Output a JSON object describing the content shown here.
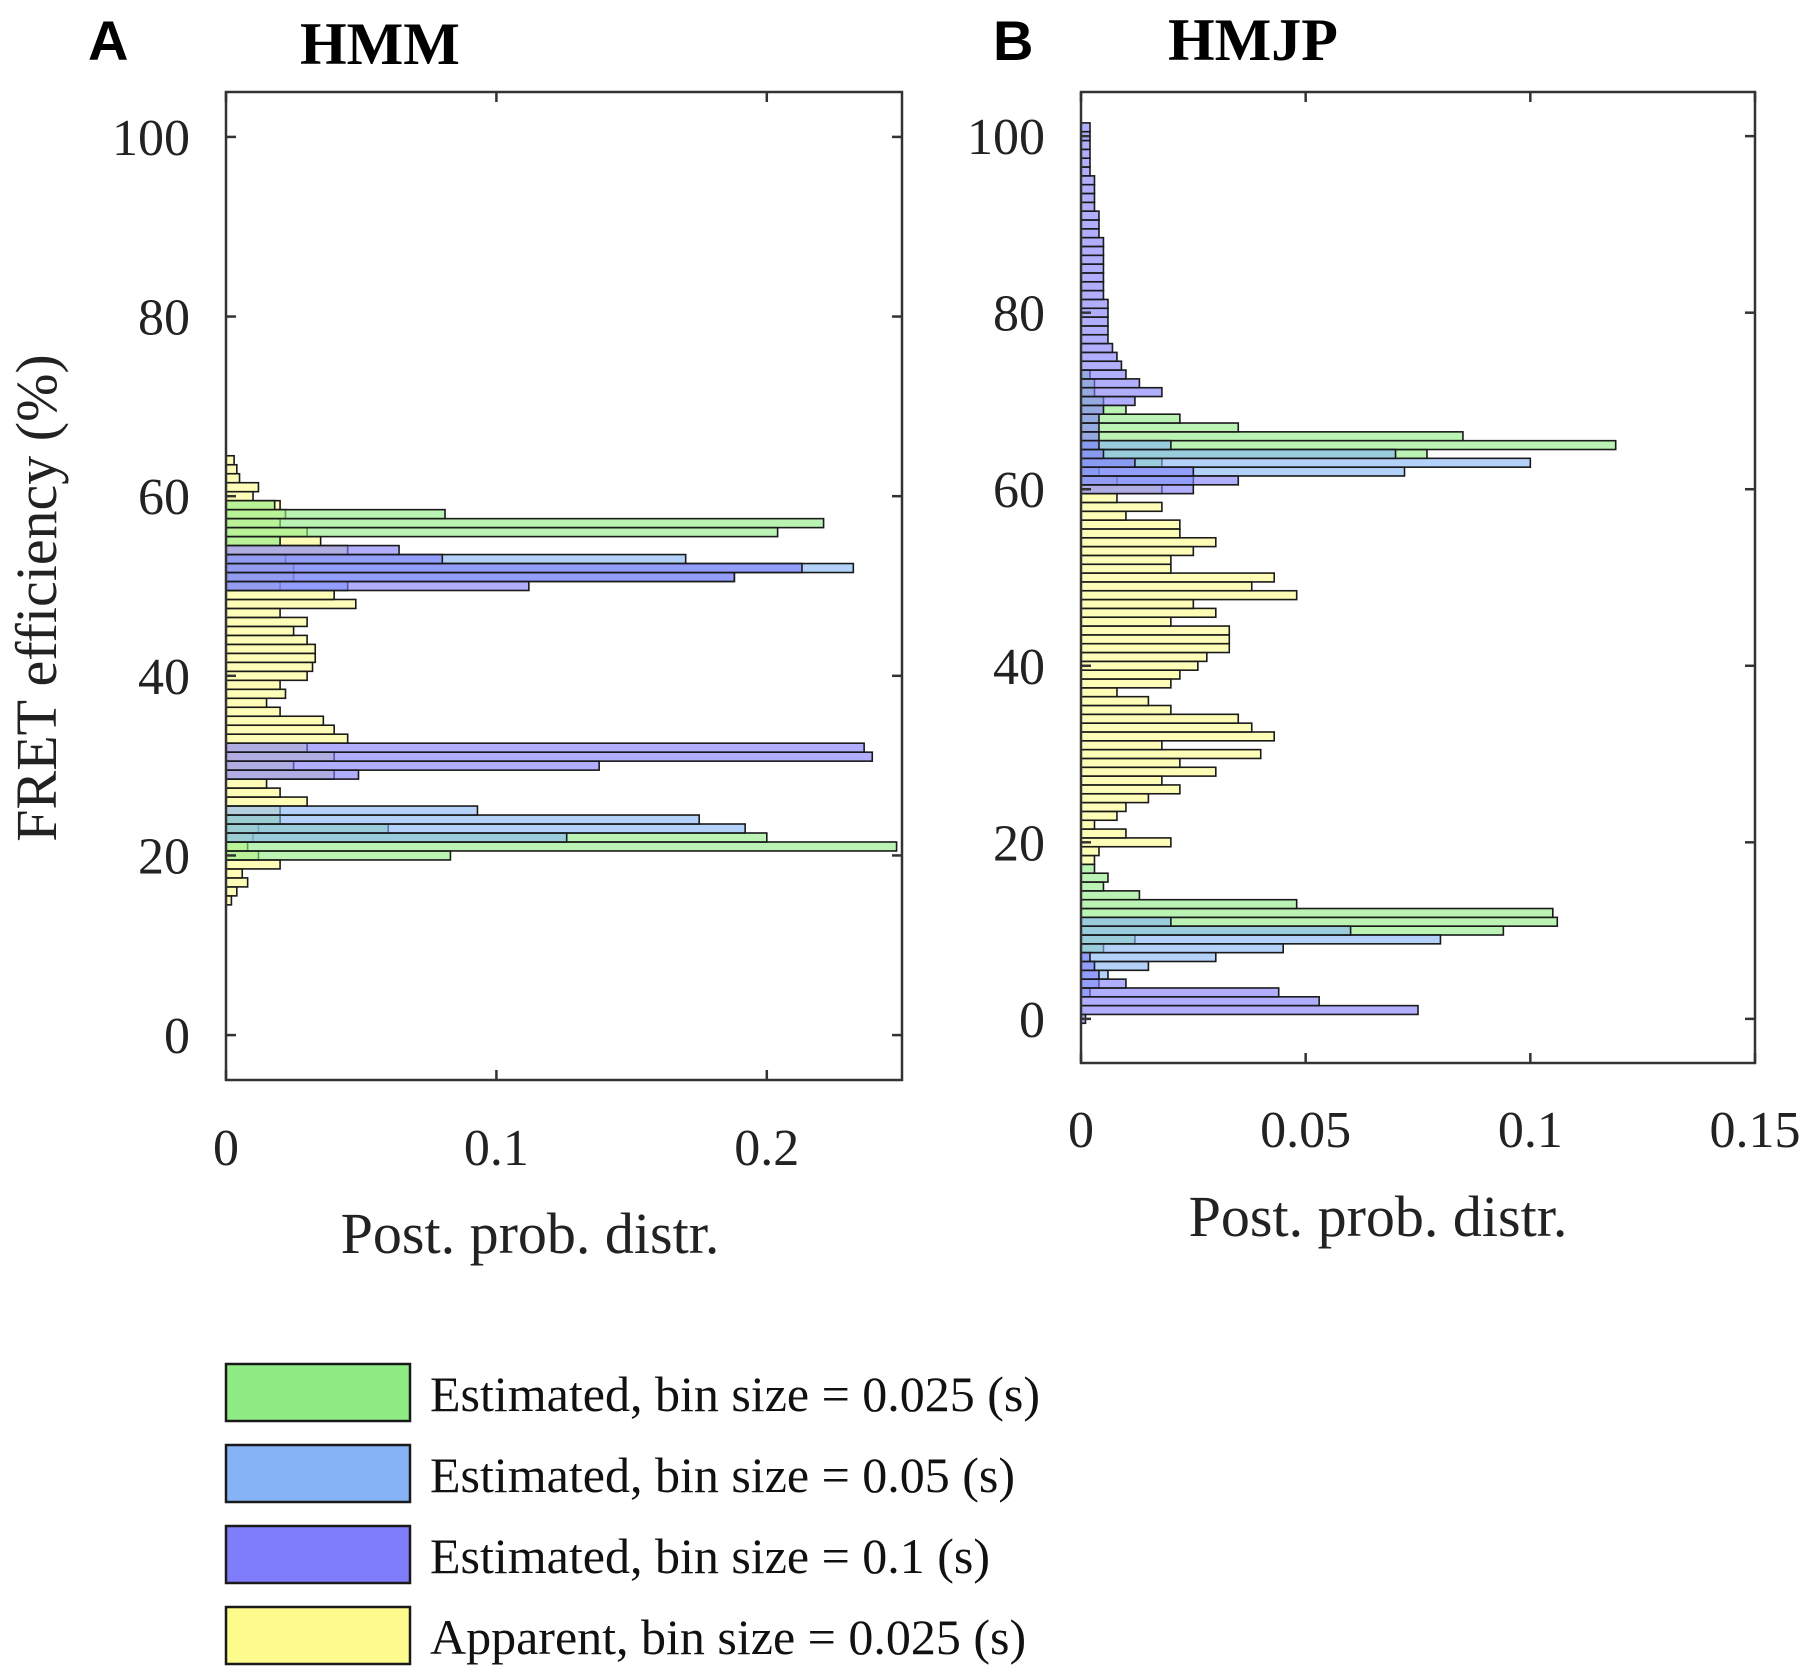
{
  "colors": {
    "est_0025": "#8fec84",
    "est_005": "#86b4f6",
    "est_01": "#7f7dfb",
    "app_0025": "#fdfb8c",
    "edge": "#1a1a1a"
  },
  "legend": [
    {
      "key": "est_0025",
      "label": "Estimated, bin size = 0.025 (s)"
    },
    {
      "key": "est_005",
      "label": "Estimated, bin size = 0.05 (s)"
    },
    {
      "key": "est_01",
      "label": "Estimated, bin size = 0.1 (s)"
    },
    {
      "key": "app_0025",
      "label": "Apparent, bin size = 0.025 (s)"
    }
  ],
  "chart_data": [
    {
      "type": "bar",
      "orientation": "horizontal",
      "panel_letter": "A",
      "title": "HMM",
      "ylabel": "FRET efficiency (%)",
      "xlabel": "Post. prob. distr.",
      "ylim": [
        -5,
        105
      ],
      "xlim": [
        0,
        0.25
      ],
      "xticks": [
        0,
        0.1,
        0.2
      ],
      "xtick_labels": [
        "0",
        "0.1",
        "0.2"
      ],
      "yticks": [
        0,
        20,
        40,
        60,
        80,
        100
      ],
      "ytick_labels": [
        "0",
        "20",
        "40",
        "60",
        "80",
        "100"
      ],
      "series": [
        {
          "key": "app_0025",
          "name": "Apparent, bin size = 0.025 (s)",
          "bin_width": 1,
          "y": [
            15,
            16,
            17,
            18,
            19,
            20,
            21,
            22,
            23,
            24,
            25,
            26,
            27,
            28,
            29,
            30,
            31,
            32,
            33,
            34,
            35,
            36,
            37,
            38,
            39,
            40,
            41,
            42,
            43,
            44,
            45,
            46,
            47,
            48,
            49,
            50,
            51,
            52,
            53,
            54,
            55,
            56,
            57,
            58,
            59,
            60,
            61,
            62,
            63,
            64
          ],
          "x": [
            0.002,
            0.004,
            0.008,
            0.006,
            0.02,
            0.012,
            0.008,
            0.01,
            0.012,
            0.02,
            0.02,
            0.03,
            0.02,
            0.015,
            0.04,
            0.025,
            0.04,
            0.03,
            0.045,
            0.04,
            0.036,
            0.02,
            0.015,
            0.022,
            0.02,
            0.03,
            0.032,
            0.033,
            0.033,
            0.03,
            0.025,
            0.03,
            0.02,
            0.048,
            0.04,
            0.02,
            0.025,
            0.025,
            0.022,
            0.045,
            0.035,
            0.03,
            0.02,
            0.022,
            0.02,
            0.01,
            0.012,
            0.005,
            0.004,
            0.003
          ]
        },
        {
          "key": "est_0025",
          "name": "Estimated, bin size = 0.025 (s)",
          "bin_width": 1,
          "y": [
            20,
            21,
            22,
            23,
            24,
            55,
            56,
            57,
            58,
            59
          ],
          "x": [
            0.083,
            0.248,
            0.2,
            0.06,
            0.02,
            0.02,
            0.204,
            0.221,
            0.081,
            0.018
          ]
        },
        {
          "key": "est_005",
          "name": "Estimated, bin size = 0.05 (s)",
          "bin_width": 1,
          "y": [
            22,
            23,
            24,
            25,
            50,
            51,
            52,
            53
          ],
          "x": [
            0.126,
            0.192,
            0.175,
            0.093,
            0.045,
            0.188,
            0.232,
            0.17
          ]
        },
        {
          "key": "est_01",
          "name": "Estimated, bin size = 0.1 (s)",
          "bin_width": 1,
          "y": [
            29,
            30,
            31,
            32,
            50,
            51,
            52,
            53,
            54
          ],
          "x": [
            0.049,
            0.138,
            0.239,
            0.236,
            0.112,
            0.188,
            0.213,
            0.08,
            0.064
          ]
        }
      ]
    },
    {
      "type": "bar",
      "orientation": "horizontal",
      "panel_letter": "B",
      "title": "HMJP",
      "ylabel": "",
      "xlabel": "Post. prob. distr.",
      "ylim": [
        -5,
        105
      ],
      "xlim": [
        0,
        0.15
      ],
      "xticks": [
        0,
        0.05,
        0.1,
        0.15
      ],
      "xtick_labels": [
        "0",
        "0.05",
        "0.1",
        "0.15"
      ],
      "yticks": [
        0,
        20,
        40,
        60,
        80,
        100
      ],
      "ytick_labels": [
        "0",
        "20",
        "40",
        "60",
        "80",
        "100"
      ],
      "series": [
        {
          "key": "app_0025",
          "name": "Apparent, bin size = 0.025 (s)",
          "bin_width": 1,
          "y": [
            18,
            19,
            20,
            21,
            22,
            23,
            24,
            25,
            26,
            27,
            28,
            29,
            30,
            31,
            32,
            33,
            34,
            35,
            36,
            37,
            38,
            39,
            40,
            41,
            42,
            43,
            44,
            45,
            46,
            47,
            48,
            49,
            50,
            51,
            52,
            53,
            54,
            55,
            56,
            57,
            58,
            59,
            60,
            61
          ],
          "x": [
            0.003,
            0.004,
            0.02,
            0.01,
            0.003,
            0.008,
            0.01,
            0.015,
            0.022,
            0.018,
            0.03,
            0.022,
            0.04,
            0.018,
            0.043,
            0.038,
            0.035,
            0.02,
            0.015,
            0.008,
            0.02,
            0.022,
            0.026,
            0.028,
            0.033,
            0.033,
            0.033,
            0.02,
            0.03,
            0.025,
            0.048,
            0.038,
            0.043,
            0.02,
            0.02,
            0.025,
            0.03,
            0.022,
            0.022,
            0.01,
            0.018,
            0.008,
            0.018,
            0.008
          ]
        },
        {
          "key": "est_0025",
          "name": "Estimated, bin size = 0.025 (s)",
          "bin_width": 1,
          "y": [
            8,
            9,
            10,
            11,
            12,
            13,
            14,
            15,
            16,
            17,
            62,
            63,
            64,
            65,
            66,
            67,
            68,
            69,
            70,
            71,
            72,
            73
          ],
          "x": [
            0.005,
            0.012,
            0.094,
            0.106,
            0.105,
            0.048,
            0.013,
            0.005,
            0.006,
            0.003,
            0.004,
            0.018,
            0.077,
            0.119,
            0.085,
            0.035,
            0.022,
            0.01,
            0.005,
            0.003,
            0.003,
            0.002
          ]
        },
        {
          "key": "est_005",
          "name": "Estimated, bin size = 0.05 (s)",
          "bin_width": 1,
          "y": [
            3,
            4,
            5,
            6,
            7,
            8,
            9,
            10,
            11,
            61,
            62,
            63,
            64,
            65
          ],
          "x": [
            0.002,
            0.004,
            0.006,
            0.015,
            0.03,
            0.045,
            0.08,
            0.06,
            0.02,
            0.025,
            0.072,
            0.1,
            0.07,
            0.02
          ]
        },
        {
          "key": "est_01",
          "name": "Estimated, bin size = 0.1 (s)",
          "bin_width": 1,
          "y": [
            0,
            1,
            2,
            3,
            4,
            5,
            6,
            7,
            60,
            61,
            62,
            63,
            64,
            65,
            66,
            67,
            68,
            69,
            70,
            71,
            72,
            73,
            74,
            75,
            76,
            77,
            78,
            79,
            80,
            81,
            82,
            83,
            84,
            85,
            86,
            87,
            88,
            89,
            90,
            91,
            92,
            93,
            94,
            95,
            96,
            97,
            98,
            99,
            100,
            101
          ],
          "x": [
            0.001,
            0.075,
            0.053,
            0.044,
            0.01,
            0.004,
            0.003,
            0.002,
            0.025,
            0.035,
            0.025,
            0.012,
            0.005,
            0.004,
            0.004,
            0.004,
            0.004,
            0.005,
            0.012,
            0.018,
            0.013,
            0.01,
            0.009,
            0.008,
            0.007,
            0.006,
            0.006,
            0.006,
            0.006,
            0.006,
            0.005,
            0.005,
            0.005,
            0.005,
            0.005,
            0.005,
            0.005,
            0.004,
            0.004,
            0.004,
            0.003,
            0.003,
            0.003,
            0.003,
            0.002,
            0.002,
            0.002,
            0.002,
            0.002,
            0.002
          ]
        }
      ]
    }
  ]
}
